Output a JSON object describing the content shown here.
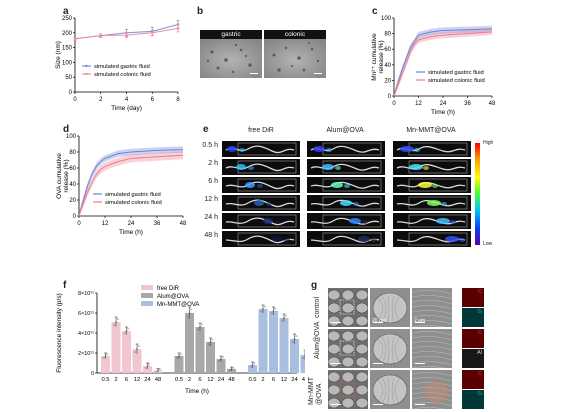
{
  "panels": {
    "a": {
      "letter": "a"
    },
    "b": {
      "letter": "b",
      "captions": [
        "gastric",
        "colonic"
      ]
    },
    "c": {
      "letter": "c"
    },
    "d": {
      "letter": "d"
    },
    "e": {
      "letter": "e",
      "columns": [
        "free DiR",
        "Alum@OVA",
        "Mn-MMT@OVA"
      ],
      "rows": [
        "0.5 h",
        "2 h",
        "6 h",
        "12 h",
        "24 h",
        "48 h"
      ],
      "scale_high": "High",
      "scale_low": "Low"
    },
    "f": {
      "letter": "f"
    },
    "g": {
      "letter": "g",
      "rows": [
        "control",
        "Alum@OVA",
        "Mn-MMT\n@OVA"
      ],
      "scale_20": "20 μm",
      "scale_2": "2 μm",
      "edx": [
        [
          "C",
          "Si"
        ],
        [
          "C",
          "Al"
        ],
        [
          "C",
          "Si"
        ]
      ]
    }
  },
  "chart_data": [
    {
      "id": "a",
      "type": "line",
      "xlabel": "Time (day)",
      "ylabel": "Size (nm)",
      "xlim": [
        0,
        8
      ],
      "ylim": [
        0,
        250
      ],
      "xticks": [
        0,
        2,
        4,
        6,
        8
      ],
      "yticks": [
        0,
        50,
        100,
        150,
        200,
        250
      ],
      "x": [
        0,
        2,
        4,
        6,
        8
      ],
      "series": [
        {
          "name": "simulated gastric fluid",
          "values": [
            180,
            190,
            200,
            205,
            228
          ],
          "err": [
            5,
            6,
            12,
            14,
            14
          ],
          "color": "#7b8fd6"
        },
        {
          "name": "simulated colonic fluid",
          "values": [
            180,
            191,
            192,
            200,
            215
          ],
          "err": [
            5,
            5,
            8,
            10,
            12
          ],
          "color": "#f08c9b"
        }
      ]
    },
    {
      "id": "c",
      "type": "line",
      "xlabel": "Time (h)",
      "ylabel": "Mn²⁺ cumulative release (%)",
      "xlim": [
        0,
        48
      ],
      "ylim": [
        0,
        100
      ],
      "xticks": [
        0,
        12,
        24,
        36,
        48
      ],
      "yticks": [
        0,
        20,
        40,
        60,
        80,
        100
      ],
      "x": [
        0,
        2,
        4,
        6,
        8,
        10,
        12,
        18,
        24,
        36,
        48
      ],
      "series": [
        {
          "name": "simulated gastric fluid",
          "values": [
            0,
            18,
            34,
            48,
            62,
            70,
            78,
            82,
            84,
            85,
            86
          ],
          "band": 4,
          "color": "#6a82d8"
        },
        {
          "name": "simulated colonic fluid",
          "values": [
            0,
            14,
            28,
            42,
            56,
            66,
            72,
            76,
            78,
            80,
            82
          ],
          "band": 4,
          "color": "#ec7d8e"
        }
      ]
    },
    {
      "id": "d",
      "type": "line",
      "xlabel": "Time (h)",
      "ylabel": "OVA cumulative release (%)",
      "xlim": [
        0,
        48
      ],
      "ylim": [
        0,
        100
      ],
      "xticks": [
        0,
        12,
        24,
        36,
        48
      ],
      "yticks": [
        0,
        20,
        40,
        60,
        80,
        100
      ],
      "x": [
        0,
        2,
        4,
        6,
        8,
        10,
        12,
        18,
        24,
        36,
        48
      ],
      "series": [
        {
          "name": "simulated gastric fluid",
          "values": [
            0,
            20,
            38,
            52,
            62,
            68,
            72,
            78,
            80,
            82,
            83
          ],
          "band": 4,
          "color": "#6a82d8"
        },
        {
          "name": "simulated colonic fluid",
          "values": [
            0,
            16,
            30,
            42,
            52,
            58,
            62,
            68,
            72,
            74,
            76
          ],
          "band": 5,
          "color": "#ec7d8e"
        }
      ]
    },
    {
      "id": "f",
      "type": "bar",
      "xlabel": "Time (h)",
      "ylabel": "Fluorescence intensity (p/s)",
      "ylim": [
        0,
        800000000000.0
      ],
      "yticks": [
        "0",
        "2×10¹¹",
        "4×10¹¹",
        "6×10¹¹",
        "8×10¹¹"
      ],
      "ytick_values": [
        0,
        200000000000.0,
        400000000000.0,
        600000000000.0,
        800000000000.0
      ],
      "groups": [
        {
          "name": "free DiR",
          "color": "#f2c6cf",
          "categories": [
            "0.5",
            "2",
            "6",
            "12",
            "24",
            "48"
          ],
          "values": [
            170000000000.0,
            510000000000.0,
            420000000000.0,
            240000000000.0,
            70000000000.0,
            25000000000.0
          ],
          "err": [
            30000000000.0,
            50000000000.0,
            40000000000.0,
            50000000000.0,
            30000000000.0,
            20000000000.0
          ]
        },
        {
          "name": "Alum@OVA",
          "color": "#a8a8a8",
          "categories": [
            "0.5",
            "2",
            "6",
            "12",
            "24",
            "48"
          ],
          "values": [
            170000000000.0,
            600000000000.0,
            460000000000.0,
            310000000000.0,
            140000000000.0,
            40000000000.0
          ],
          "err": [
            30000000000.0,
            60000000000.0,
            40000000000.0,
            40000000000.0,
            30000000000.0,
            20000000000.0
          ]
        },
        {
          "name": "Mn-MMT@OVA",
          "color": "#aabfdf",
          "categories": [
            "0.5",
            "2",
            "6",
            "12",
            "24",
            "48"
          ],
          "values": [
            80000000000.0,
            640000000000.0,
            620000000000.0,
            550000000000.0,
            340000000000.0,
            180000000000.0
          ],
          "err": [
            30000000000.0,
            40000000000.0,
            40000000000.0,
            40000000000.0,
            50000000000.0,
            50000000000.0
          ]
        }
      ]
    }
  ]
}
